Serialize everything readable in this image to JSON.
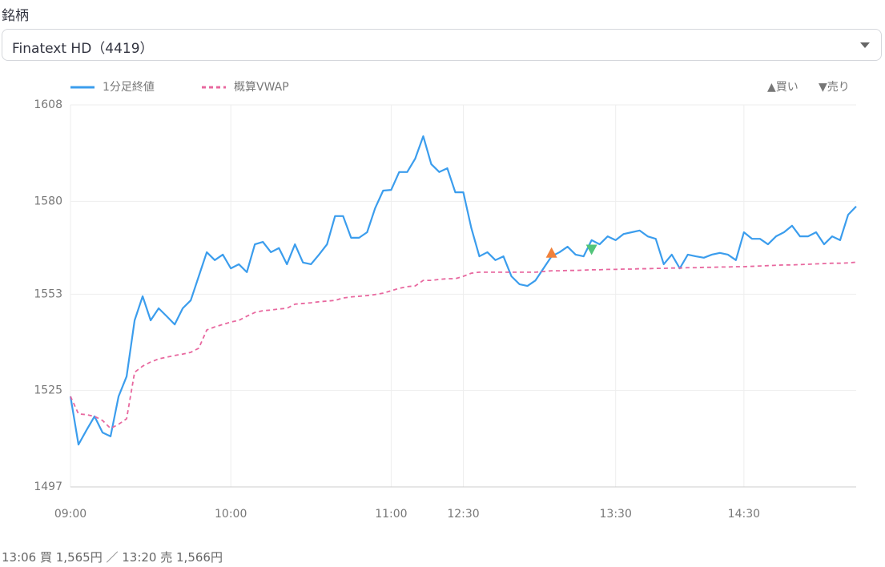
{
  "header": {
    "label": "銘柄",
    "selected": "Finatext HD（4419）"
  },
  "chart_data": {
    "type": "line",
    "legend_left": [
      "1分足終値",
      "概算VWAP"
    ],
    "legend_right": [
      "▲買い",
      "▼売り"
    ],
    "categories": [
      "09:00",
      null,
      null,
      null,
      null,
      null,
      null,
      null,
      null,
      null,
      null,
      null,
      null,
      null,
      null,
      null,
      null,
      null,
      null,
      null,
      "10:00",
      null,
      null,
      null,
      null,
      null,
      null,
      null,
      null,
      null,
      null,
      null,
      null,
      null,
      null,
      null,
      null,
      null,
      null,
      null,
      "11:00",
      null,
      null,
      null,
      null,
      null,
      null,
      null,
      null,
      "12:30",
      null,
      null,
      null,
      null,
      null,
      null,
      null,
      null,
      null,
      null,
      null,
      null,
      null,
      null,
      null,
      null,
      null,
      null,
      "13:30",
      null,
      null,
      null,
      null,
      null,
      null,
      null,
      null,
      null,
      null,
      null,
      null,
      null,
      null,
      null,
      "14:30",
      null,
      null,
      null,
      null,
      null,
      null,
      null,
      null,
      null,
      null,
      null,
      null,
      null,
      null
    ],
    "series": [
      {
        "name": "1分足終値",
        "color": "#3b9ded",
        "dash": false,
        "values": [
          1523.3,
          1509.3,
          1513.5,
          1517.5,
          1512.8,
          1511.7,
          1523.3,
          1529.1,
          1545.4,
          1552.4,
          1545.4,
          1548.9,
          1546.6,
          1544.2,
          1548.9,
          1551.2,
          1558.2,
          1565.2,
          1562.9,
          1564.5,
          1560.5,
          1561.7,
          1559.4,
          1567.5,
          1568.2,
          1565.2,
          1566.4,
          1561.7,
          1567.5,
          1562.2,
          1561.7,
          1564.5,
          1567.5,
          1575.7,
          1575.7,
          1569.4,
          1569.4,
          1571.0,
          1578.0,
          1583.1,
          1583.3,
          1588.5,
          1588.5,
          1592.4,
          1598.9,
          1590.8,
          1588.5,
          1589.6,
          1582.6,
          1582.6,
          1572.2,
          1564.0,
          1565.2,
          1562.9,
          1564.0,
          1558.2,
          1555.9,
          1555.4,
          1557.0,
          1560.5,
          1564.0,
          1565.2,
          1566.8,
          1564.5,
          1564.0,
          1568.7,
          1567.5,
          1569.8,
          1568.7,
          1570.5,
          1571.0,
          1571.5,
          1569.8,
          1569.1,
          1561.7,
          1564.5,
          1560.5,
          1564.5,
          1564.0,
          1563.6,
          1564.5,
          1565.0,
          1564.5,
          1562.9,
          1571.0,
          1569.1,
          1569.1,
          1567.5,
          1569.8,
          1571.0,
          1572.9,
          1569.8,
          1569.8,
          1571.0,
          1567.5,
          1569.8,
          1568.7,
          1576.1,
          1578.5
        ]
      },
      {
        "name": "概算VWAP",
        "color": "#e8689f",
        "dash": true,
        "values": [
          1523.3,
          1518.2,
          1518.0,
          1517.5,
          1516.3,
          1514.0,
          1515.2,
          1516.8,
          1530.3,
          1532.1,
          1533.3,
          1534.2,
          1534.7,
          1535.2,
          1535.6,
          1536.1,
          1537.3,
          1542.6,
          1543.5,
          1544.2,
          1544.9,
          1545.4,
          1546.6,
          1547.7,
          1548.2,
          1548.4,
          1548.7,
          1548.9,
          1550.1,
          1550.3,
          1550.5,
          1550.8,
          1551.0,
          1551.2,
          1551.9,
          1552.2,
          1552.4,
          1552.6,
          1552.9,
          1553.3,
          1554.0,
          1554.7,
          1555.2,
          1555.4,
          1557.0,
          1557.0,
          1557.3,
          1557.5,
          1557.5,
          1558.2,
          1559.1,
          1559.4,
          1559.4,
          1559.4,
          1559.4,
          1559.4,
          1559.4,
          1559.4,
          1559.4,
          1559.6,
          1559.8,
          1559.8,
          1559.9,
          1559.9,
          1560.0,
          1560.1,
          1560.1,
          1560.2,
          1560.2,
          1560.3,
          1560.3,
          1560.4,
          1560.4,
          1560.5,
          1560.5,
          1560.6,
          1560.6,
          1560.7,
          1560.7,
          1560.8,
          1560.8,
          1560.9,
          1560.9,
          1561.0,
          1561.0,
          1561.1,
          1561.2,
          1561.3,
          1561.4,
          1561.5,
          1561.5,
          1561.6,
          1561.7,
          1561.8,
          1561.9,
          1562.0,
          1562.0,
          1562.1,
          1562.3
        ]
      }
    ],
    "trades": [
      {
        "marker": "triangle-up",
        "index": 60,
        "value": 1565,
        "color": "#f0813b"
      },
      {
        "marker": "triangle-down",
        "index": 65,
        "value": 1566,
        "color": "#52c47a"
      }
    ],
    "ylim": [
      1497,
      1608
    ],
    "yticks": [
      1497,
      1525,
      1553,
      1580,
      1608
    ],
    "grid": true
  },
  "footer": "13:06 買 1,565円 ／ 13:20 売 1,566円"
}
